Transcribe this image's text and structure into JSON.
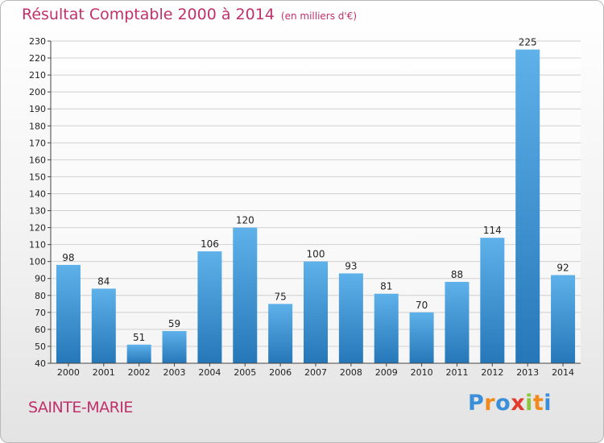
{
  "header": {
    "title": "Résultat Comptable 2000 à 2014",
    "subtitle": "(en milliers d'€)"
  },
  "footer": {
    "place": "SAINTE-MARIE",
    "logo_letters": [
      {
        "char": "P",
        "color": "#3a8fd8"
      },
      {
        "char": "r",
        "color": "#f08a1c"
      },
      {
        "char": "o",
        "color": "#3a8fd8"
      },
      {
        "char": "x",
        "color": "#e23a2e"
      },
      {
        "char": "i",
        "color": "#8cc63e"
      },
      {
        "char": "t",
        "color": "#f08a1c"
      },
      {
        "char": "i",
        "color": "#3a8fd8"
      }
    ]
  },
  "colors": {
    "bar_top": "#5fb1ea",
    "bar_bottom": "#2577b8",
    "grid": "#d0d0d0",
    "title": "#c0306a"
  },
  "chart_data": {
    "type": "bar",
    "title": "Résultat Comptable 2000 à 2014",
    "subtitle": "(en milliers d'€)",
    "categories": [
      "2000",
      "2001",
      "2002",
      "2003",
      "2004",
      "2005",
      "2006",
      "2007",
      "2008",
      "2009",
      "2010",
      "2011",
      "2012",
      "2013",
      "2014"
    ],
    "values": [
      98,
      84,
      51,
      59,
      106,
      120,
      75,
      100,
      93,
      81,
      70,
      88,
      114,
      225,
      92
    ],
    "data_labels": [
      "98",
      "84",
      "51",
      "59",
      "106",
      "120",
      "75",
      "100",
      "93",
      "81",
      "70",
      "88",
      "114",
      "225",
      "92"
    ],
    "ylim": [
      40,
      230
    ],
    "yticks": [
      40,
      50,
      60,
      70,
      80,
      90,
      100,
      110,
      120,
      130,
      140,
      150,
      160,
      170,
      180,
      190,
      200,
      210,
      220,
      230
    ],
    "grid": true,
    "xlabel": "",
    "ylabel": ""
  }
}
